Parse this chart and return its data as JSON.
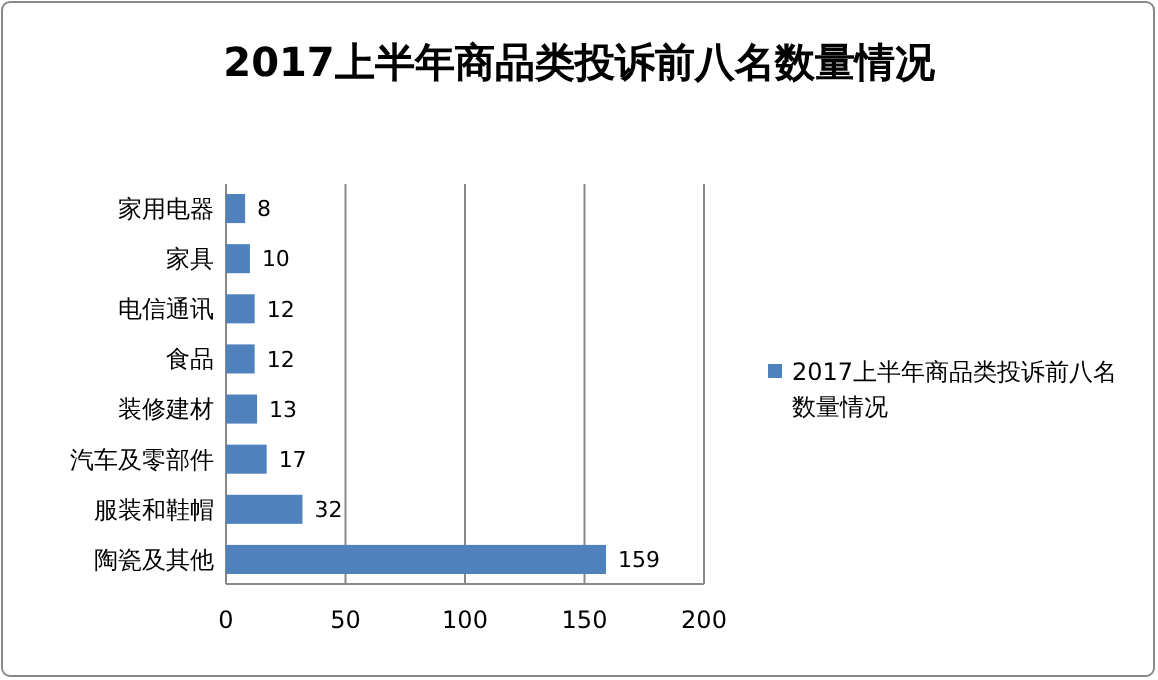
{
  "chart_data": {
    "type": "bar",
    "orientation": "horizontal",
    "title": "2017上半年商品类投诉前八名数量情况",
    "categories": [
      "家用电器",
      "家具",
      "电信通讯",
      "食品",
      "装修建材",
      "汽车及零部件",
      "服装和鞋帽",
      "陶瓷及其他"
    ],
    "series": [
      {
        "name": "2017上半年商品类投诉前八名数量情况",
        "color": "#4f81bd",
        "values": [
          8,
          10,
          12,
          12,
          13,
          17,
          32,
          159
        ]
      }
    ],
    "xlim": [
      0,
      200
    ],
    "xticks": [
      0,
      50,
      100,
      150,
      200
    ],
    "grid": "x",
    "legend": "right",
    "data_labels": true
  }
}
